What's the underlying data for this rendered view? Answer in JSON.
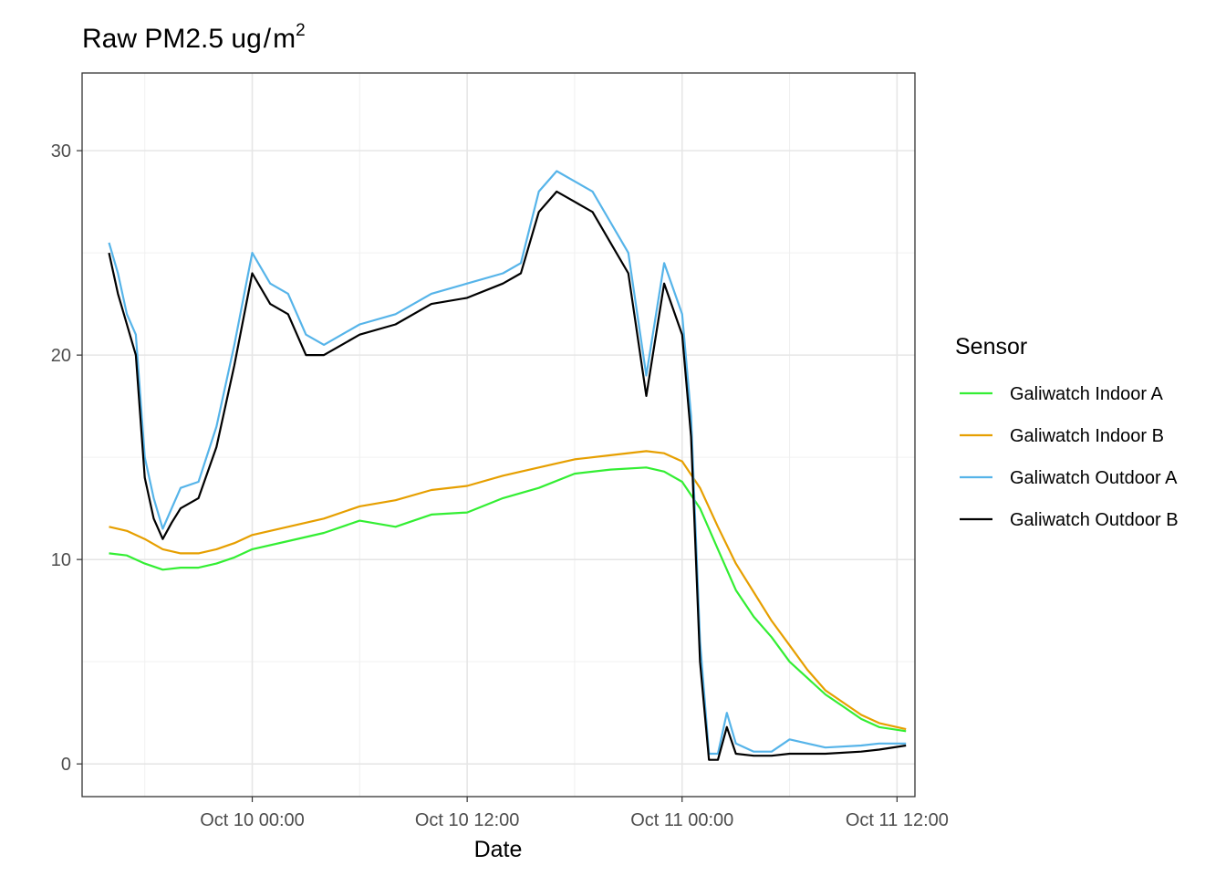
{
  "chart_data": {
    "type": "line",
    "title_main": "Raw PM2.5 ug",
    "title_sep": "/",
    "title_unit": "m",
    "title_sup": "2",
    "xlabel": "Date",
    "ylabel": "",
    "xlim": [
      "Oct 09 14:30",
      "Oct 11 13:00"
    ],
    "ylim": [
      -1.6,
      33.8
    ],
    "x_ticks": [
      {
        "value": "Oct 10 00:00",
        "label": "Oct 10 00:00"
      },
      {
        "value": "Oct 10 12:00",
        "label": "Oct 10 12:00"
      },
      {
        "value": "Oct 11 00:00",
        "label": "Oct 11 00:00"
      },
      {
        "value": "Oct 11 12:00",
        "label": "Oct 11 12:00"
      }
    ],
    "y_ticks": [
      {
        "value": 0,
        "label": "0"
      },
      {
        "value": 10,
        "label": "10"
      },
      {
        "value": 20,
        "label": "20"
      },
      {
        "value": 30,
        "label": "30"
      }
    ],
    "grid": true,
    "legend": {
      "title": "Sensor",
      "position": "right"
    },
    "series": [
      {
        "name": "Galiwatch Indoor A",
        "color": "#33ee33",
        "x": [
          "Oct 09 16:00",
          "Oct 09 17:00",
          "Oct 09 18:00",
          "Oct 09 19:00",
          "Oct 09 20:00",
          "Oct 09 21:00",
          "Oct 09 22:00",
          "Oct 09 23:00",
          "Oct 10 00:00",
          "Oct 10 02:00",
          "Oct 10 04:00",
          "Oct 10 06:00",
          "Oct 10 08:00",
          "Oct 10 10:00",
          "Oct 10 12:00",
          "Oct 10 14:00",
          "Oct 10 16:00",
          "Oct 10 18:00",
          "Oct 10 20:00",
          "Oct 10 22:00",
          "Oct 10 23:00",
          "Oct 11 00:00",
          "Oct 11 01:00",
          "Oct 11 02:00",
          "Oct 11 03:00",
          "Oct 11 04:00",
          "Oct 11 05:00",
          "Oct 11 06:00",
          "Oct 11 07:00",
          "Oct 11 08:00",
          "Oct 11 09:00",
          "Oct 11 10:00",
          "Oct 11 11:00",
          "Oct 11 12:30"
        ],
        "values": [
          10.3,
          10.2,
          9.8,
          9.5,
          9.6,
          9.6,
          9.8,
          10.1,
          10.5,
          10.9,
          11.3,
          11.9,
          11.6,
          12.2,
          12.3,
          13.0,
          13.5,
          14.2,
          14.4,
          14.5,
          14.3,
          13.8,
          12.5,
          10.5,
          8.5,
          7.2,
          6.2,
          5.0,
          4.2,
          3.4,
          2.8,
          2.2,
          1.8,
          1.6
        ]
      },
      {
        "name": "Galiwatch Indoor B",
        "color": "#e69f00",
        "x": [
          "Oct 09 16:00",
          "Oct 09 17:00",
          "Oct 09 18:00",
          "Oct 09 19:00",
          "Oct 09 20:00",
          "Oct 09 21:00",
          "Oct 09 22:00",
          "Oct 09 23:00",
          "Oct 10 00:00",
          "Oct 10 02:00",
          "Oct 10 04:00",
          "Oct 10 06:00",
          "Oct 10 08:00",
          "Oct 10 10:00",
          "Oct 10 12:00",
          "Oct 10 14:00",
          "Oct 10 16:00",
          "Oct 10 18:00",
          "Oct 10 20:00",
          "Oct 10 22:00",
          "Oct 10 23:00",
          "Oct 11 00:00",
          "Oct 11 01:00",
          "Oct 11 02:00",
          "Oct 11 03:00",
          "Oct 11 04:00",
          "Oct 11 05:00",
          "Oct 11 06:00",
          "Oct 11 07:00",
          "Oct 11 08:00",
          "Oct 11 09:00",
          "Oct 11 10:00",
          "Oct 11 11:00",
          "Oct 11 12:30"
        ],
        "values": [
          11.6,
          11.4,
          11.0,
          10.5,
          10.3,
          10.3,
          10.5,
          10.8,
          11.2,
          11.6,
          12.0,
          12.6,
          12.9,
          13.4,
          13.6,
          14.1,
          14.5,
          14.9,
          15.1,
          15.3,
          15.2,
          14.8,
          13.5,
          11.6,
          9.8,
          8.4,
          7.0,
          5.8,
          4.6,
          3.6,
          3.0,
          2.4,
          2.0,
          1.7
        ]
      },
      {
        "name": "Galiwatch Outdoor A",
        "color": "#56b4e9",
        "x": [
          "Oct 09 16:00",
          "Oct 09 16:30",
          "Oct 09 17:00",
          "Oct 09 17:30",
          "Oct 09 18:00",
          "Oct 09 18:30",
          "Oct 09 19:00",
          "Oct 09 19:30",
          "Oct 09 20:00",
          "Oct 09 21:00",
          "Oct 09 22:00",
          "Oct 09 23:00",
          "Oct 10 00:00",
          "Oct 10 01:00",
          "Oct 10 02:00",
          "Oct 10 03:00",
          "Oct 10 04:00",
          "Oct 10 06:00",
          "Oct 10 08:00",
          "Oct 10 10:00",
          "Oct 10 12:00",
          "Oct 10 14:00",
          "Oct 10 15:00",
          "Oct 10 16:00",
          "Oct 10 17:00",
          "Oct 10 18:00",
          "Oct 10 19:00",
          "Oct 10 20:00",
          "Oct 10 21:00",
          "Oct 10 22:00",
          "Oct 10 23:00",
          "Oct 11 00:00",
          "Oct 11 00:30",
          "Oct 11 01:00",
          "Oct 11 01:30",
          "Oct 11 02:00",
          "Oct 11 02:30",
          "Oct 11 03:00",
          "Oct 11 04:00",
          "Oct 11 05:00",
          "Oct 11 06:00",
          "Oct 11 08:00",
          "Oct 11 10:00",
          "Oct 11 11:00",
          "Oct 11 12:30"
        ],
        "values": [
          25.5,
          24.0,
          22.0,
          21.0,
          15.0,
          13.0,
          11.5,
          12.5,
          13.5,
          13.8,
          16.5,
          20.5,
          25.0,
          23.5,
          23.0,
          21.0,
          20.5,
          21.5,
          22.0,
          23.0,
          23.5,
          24.0,
          24.5,
          28.0,
          29.0,
          28.5,
          28.0,
          26.5,
          25.0,
          19.0,
          24.5,
          22.0,
          17.0,
          6.0,
          0.5,
          0.5,
          2.5,
          1.0,
          0.6,
          0.6,
          1.2,
          0.8,
          0.9,
          1.0,
          1.0
        ]
      },
      {
        "name": "Galiwatch Outdoor B",
        "color": "#000000",
        "x": [
          "Oct 09 16:00",
          "Oct 09 16:30",
          "Oct 09 17:00",
          "Oct 09 17:30",
          "Oct 09 18:00",
          "Oct 09 18:30",
          "Oct 09 19:00",
          "Oct 09 19:30",
          "Oct 09 20:00",
          "Oct 09 21:00",
          "Oct 09 22:00",
          "Oct 09 23:00",
          "Oct 10 00:00",
          "Oct 10 01:00",
          "Oct 10 02:00",
          "Oct 10 03:00",
          "Oct 10 04:00",
          "Oct 10 06:00",
          "Oct 10 08:00",
          "Oct 10 10:00",
          "Oct 10 12:00",
          "Oct 10 14:00",
          "Oct 10 15:00",
          "Oct 10 16:00",
          "Oct 10 17:00",
          "Oct 10 18:00",
          "Oct 10 19:00",
          "Oct 10 20:00",
          "Oct 10 21:00",
          "Oct 10 22:00",
          "Oct 10 23:00",
          "Oct 11 00:00",
          "Oct 11 00:30",
          "Oct 11 01:00",
          "Oct 11 01:30",
          "Oct 11 02:00",
          "Oct 11 02:30",
          "Oct 11 03:00",
          "Oct 11 04:00",
          "Oct 11 05:00",
          "Oct 11 06:00",
          "Oct 11 08:00",
          "Oct 11 10:00",
          "Oct 11 11:00",
          "Oct 11 12:30"
        ],
        "values": [
          25.0,
          23.0,
          21.5,
          20.0,
          14.0,
          12.0,
          11.0,
          11.8,
          12.5,
          13.0,
          15.5,
          19.5,
          24.0,
          22.5,
          22.0,
          20.0,
          20.0,
          21.0,
          21.5,
          22.5,
          22.8,
          23.5,
          24.0,
          27.0,
          28.0,
          27.5,
          27.0,
          25.5,
          24.0,
          18.0,
          23.5,
          21.0,
          16.0,
          5.0,
          0.2,
          0.2,
          1.8,
          0.5,
          0.4,
          0.4,
          0.5,
          0.5,
          0.6,
          0.7,
          0.9
        ]
      }
    ]
  }
}
